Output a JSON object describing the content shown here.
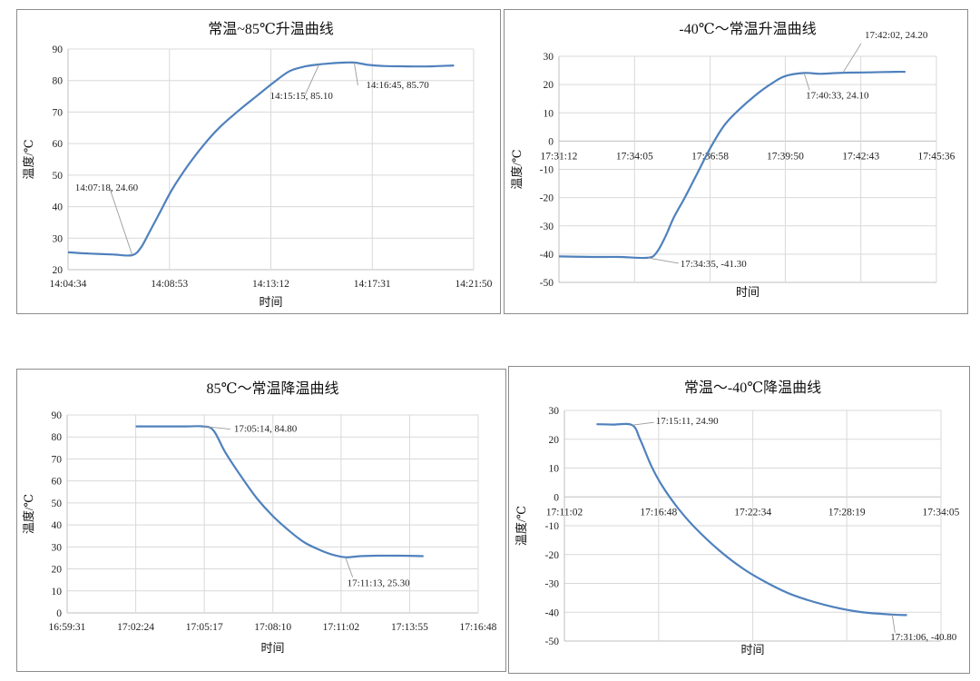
{
  "chart_data": [
    {
      "type": "line",
      "title": "常温~85℃升温曲线",
      "xlabel": "时间",
      "ylabel": "温度/℃",
      "ylim": [
        20,
        90
      ],
      "yticks": [
        20,
        30,
        40,
        50,
        60,
        70,
        80,
        90
      ],
      "x_ticks": [
        "14:04:34",
        "14:08:53",
        "14:13:12",
        "14:17:31",
        "14:21:50"
      ],
      "xlim": [
        "14:04:34",
        "14:21:50"
      ],
      "grid": true,
      "color": "#4f81bd",
      "series": [
        {
          "x": [
            "14:04:34",
            "14:05:30",
            "14:06:30",
            "14:07:18",
            "14:07:40",
            "14:08:00",
            "14:08:30",
            "14:09:00",
            "14:09:40",
            "14:10:20",
            "14:11:00",
            "14:11:50",
            "14:12:40",
            "14:13:20",
            "14:14:00",
            "14:14:40",
            "14:15:15",
            "14:15:50",
            "14:16:20",
            "14:16:45",
            "14:17:20",
            "14:18:00",
            "14:19:00",
            "14:20:00",
            "14:21:00"
          ],
          "values": [
            25.5,
            25.1,
            24.8,
            24.6,
            27.0,
            31.5,
            38.5,
            45.5,
            53.0,
            59.5,
            65.0,
            70.5,
            75.5,
            79.5,
            83.0,
            84.5,
            85.1,
            85.5,
            85.7,
            85.7,
            85.0,
            84.6,
            84.5,
            84.5,
            84.8
          ]
        }
      ],
      "annotations": [
        {
          "text": "14:07:18, 24.60",
          "x": "14:07:18",
          "y": 24.6
        },
        {
          "text": "14:15:15, 85.10",
          "x": "14:15:15",
          "y": 85.1
        },
        {
          "text": "14:16:45, 85.70",
          "x": "14:16:45",
          "y": 85.7
        }
      ]
    },
    {
      "type": "line",
      "title": "-40℃～常温升温曲线",
      "xlabel": "时间",
      "ylabel": "温度/℃",
      "ylim": [
        -50,
        30
      ],
      "yticks": [
        -50,
        -40,
        -30,
        -20,
        -10,
        0,
        10,
        20,
        30
      ],
      "x_ticks": [
        "17:31:12",
        "17:34:05",
        "17:36:58",
        "17:39:50",
        "17:42:43",
        "17:45:36"
      ],
      "xlim": [
        "17:31:12",
        "17:45:36"
      ],
      "grid": true,
      "color": "#4f81bd",
      "series": [
        {
          "x": [
            "17:31:12",
            "17:32:30",
            "17:33:30",
            "17:34:35",
            "17:34:55",
            "17:35:15",
            "17:35:35",
            "17:36:00",
            "17:36:30",
            "17:37:00",
            "17:37:30",
            "17:38:00",
            "17:38:40",
            "17:39:20",
            "17:39:50",
            "17:40:33",
            "17:41:10",
            "17:42:02",
            "17:43:00",
            "17:44:00",
            "17:44:25"
          ],
          "values": [
            -40.8,
            -41.0,
            -41.0,
            -41.3,
            -39.5,
            -34.0,
            -27.0,
            -20.0,
            -11.0,
            -2.0,
            5.5,
            10.5,
            16.0,
            20.5,
            23.0,
            24.1,
            23.8,
            24.2,
            24.3,
            24.5,
            24.5
          ]
        }
      ],
      "annotations": [
        {
          "text": "17:34:35, -41.30",
          "x": "17:34:35",
          "y": -41.3
        },
        {
          "text": "17:40:33, 24.10",
          "x": "17:40:33",
          "y": 24.1
        },
        {
          "text": "17:42:02, 24.20",
          "x": "17:42:02",
          "y": 24.2
        }
      ]
    },
    {
      "type": "line",
      "title": "85℃～常温降温曲线",
      "xlabel": "时间",
      "ylabel": "温度/℃",
      "ylim": [
        0,
        90
      ],
      "yticks": [
        0,
        10,
        20,
        30,
        40,
        50,
        60,
        70,
        80,
        90
      ],
      "x_ticks": [
        "16:59:31",
        "17:02:24",
        "17:05:17",
        "17:08:10",
        "17:11:02",
        "17:13:55",
        "17:16:48"
      ],
      "xlim": [
        "16:59:31",
        "17:16:48"
      ],
      "grid": true,
      "color": "#4f81bd",
      "series": [
        {
          "x": [
            "17:02:24",
            "17:03:30",
            "17:04:30",
            "17:05:14",
            "17:05:40",
            "17:06:10",
            "17:06:50",
            "17:07:30",
            "17:08:10",
            "17:08:50",
            "17:09:30",
            "17:10:10",
            "17:10:40",
            "17:11:13",
            "17:11:50",
            "17:12:30",
            "17:13:30",
            "17:14:30"
          ],
          "values": [
            84.8,
            84.8,
            84.8,
            84.8,
            83.0,
            73.0,
            62.0,
            52.0,
            44.0,
            37.5,
            32.0,
            28.5,
            26.5,
            25.3,
            25.8,
            26.0,
            26.0,
            25.8
          ]
        }
      ],
      "annotations": [
        {
          "text": "17:05:14, 84.80",
          "x": "17:05:14",
          "y": 84.8
        },
        {
          "text": "17:11:13, 25.30",
          "x": "17:11:13",
          "y": 25.3
        }
      ]
    },
    {
      "type": "line",
      "title": "常温～-40℃降温曲线",
      "xlabel": "时间",
      "ylabel": "温度/℃",
      "ylim": [
        -50,
        30
      ],
      "yticks": [
        -50,
        -40,
        -30,
        -20,
        -10,
        0,
        10,
        20,
        30
      ],
      "x_ticks": [
        "17:11:02",
        "17:16:48",
        "17:22:34",
        "17:28:19",
        "17:34:05"
      ],
      "xlim": [
        "17:11:02",
        "17:34:05"
      ],
      "grid": true,
      "color": "#4f81bd",
      "series": [
        {
          "x": [
            "17:13:00",
            "17:14:00",
            "17:15:11",
            "17:15:40",
            "17:16:20",
            "17:17:00",
            "17:18:00",
            "17:19:00",
            "17:20:30",
            "17:22:00",
            "17:23:30",
            "17:25:00",
            "17:27:00",
            "17:29:00",
            "17:31:06",
            "17:32:00"
          ],
          "values": [
            25.2,
            25.1,
            24.9,
            20.0,
            11.0,
            4.0,
            -4.0,
            -10.5,
            -18.5,
            -25.0,
            -30.0,
            -34.0,
            -37.5,
            -39.8,
            -40.8,
            -41.0
          ]
        }
      ],
      "annotations": [
        {
          "text": "17:15:11, 24.90",
          "x": "17:15:11",
          "y": 24.9
        },
        {
          "text": "17:31:06, -40.80",
          "x": "17:31:06",
          "y": -40.8
        }
      ]
    }
  ]
}
